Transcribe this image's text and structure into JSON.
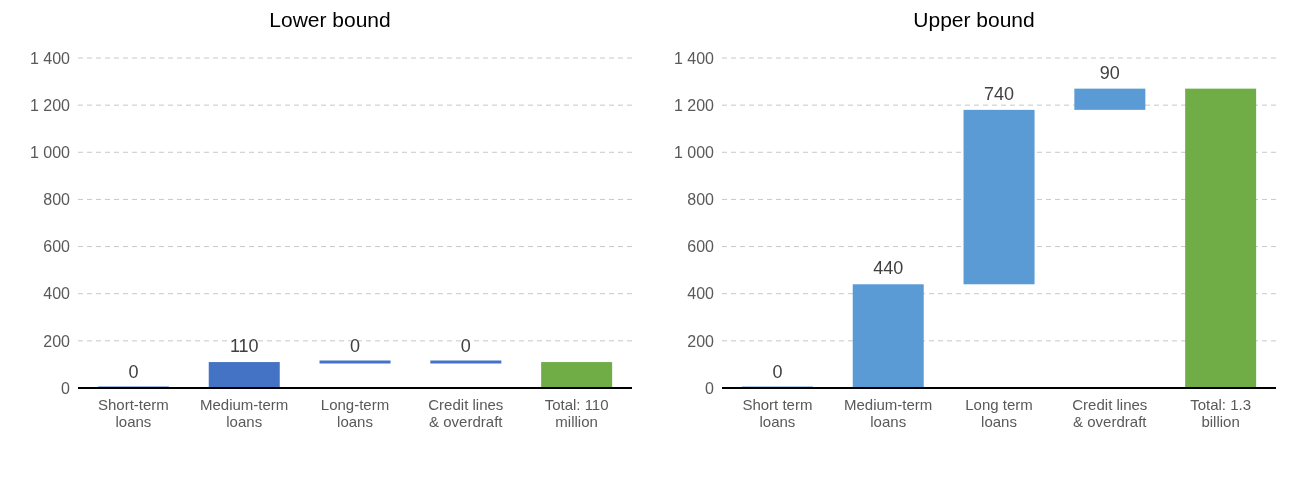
{
  "chart_data": [
    {
      "type": "bar",
      "title": "Lower bound",
      "categories": [
        "Short-term loans",
        "Medium-term loans",
        "Long-term loans",
        "Credit lines & overdraft",
        "Total: 110 million"
      ],
      "values": [
        0,
        110,
        0,
        0,
        110
      ],
      "base": [
        0,
        0,
        110,
        110,
        0
      ],
      "colors": [
        "#4472c4",
        "#4472c4",
        "#4472c4",
        "#4472c4",
        "#70ad47"
      ],
      "value_labels": [
        "0",
        "110",
        "0",
        "0",
        null
      ],
      "ylim": [
        0,
        1400
      ],
      "yticks": [
        0,
        200,
        400,
        600,
        800,
        {
          "value": 1000,
          "label": "1 000"
        },
        {
          "value": 1200,
          "label": "1 200"
        },
        {
          "value": 1400,
          "label": "1 400"
        }
      ],
      "grid": "y",
      "legend": false
    },
    {
      "type": "bar",
      "title": "Upper bound",
      "categories": [
        "Short term loans",
        "Medium-term loans",
        "Long term loans",
        "Credit lines & overdraft",
        "Total: 1.3 billion"
      ],
      "values": [
        0,
        440,
        740,
        90,
        1270
      ],
      "base": [
        0,
        0,
        440,
        1180,
        0
      ],
      "colors": [
        "#5b9bd5",
        "#5b9bd5",
        "#5b9bd5",
        "#5b9bd5",
        "#70ad47"
      ],
      "value_labels": [
        "0",
        "440",
        "740",
        "90",
        null
      ],
      "ylim": [
        0,
        1400
      ],
      "yticks": [
        0,
        200,
        400,
        600,
        800,
        {
          "value": 1000,
          "label": "1 000"
        },
        {
          "value": 1200,
          "label": "1 200"
        },
        {
          "value": 1400,
          "label": "1 400"
        }
      ],
      "grid": "y",
      "legend": false
    }
  ]
}
